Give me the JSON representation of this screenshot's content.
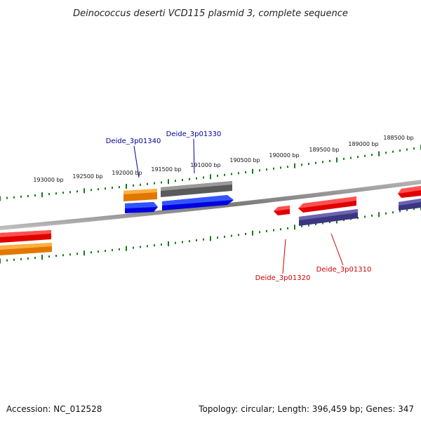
{
  "title": "Deinococcus deserti VCD115 plasmid 3, complete sequence",
  "ticks": [
    {
      "label": "188500 bp"
    },
    {
      "label": "189000 bp"
    },
    {
      "label": "189500 bp"
    },
    {
      "label": "190000 bp"
    },
    {
      "label": "190500 bp"
    },
    {
      "label": "191000 bp"
    },
    {
      "label": "191500 bp"
    },
    {
      "label": "192000 bp"
    },
    {
      "label": "192500 bp"
    },
    {
      "label": "193000 bp"
    }
  ],
  "genes": {
    "g1340": {
      "label": "Deide_3p01340",
      "color": "#000099"
    },
    "g1330": {
      "label": "Deide_3p01330",
      "color": "#000099"
    },
    "g1320": {
      "label": "Deide_3p01320",
      "color": "#cc0000"
    },
    "g1310": {
      "label": "Deide_3p01310",
      "color": "#cc0000"
    }
  },
  "colors": {
    "red_feature": "#ff0000",
    "orange_feature": "#ff8800",
    "blue_feature": "#0000ff",
    "gray_feature": "#666666",
    "purple_feature": "#4b4393",
    "tick_color": "#1a7a1a",
    "backbone": "#888888"
  },
  "footer": {
    "accession": "Accession: NC_012528",
    "summary": "Topology: circular; Length: 396,459 bp; Genes: 347"
  }
}
